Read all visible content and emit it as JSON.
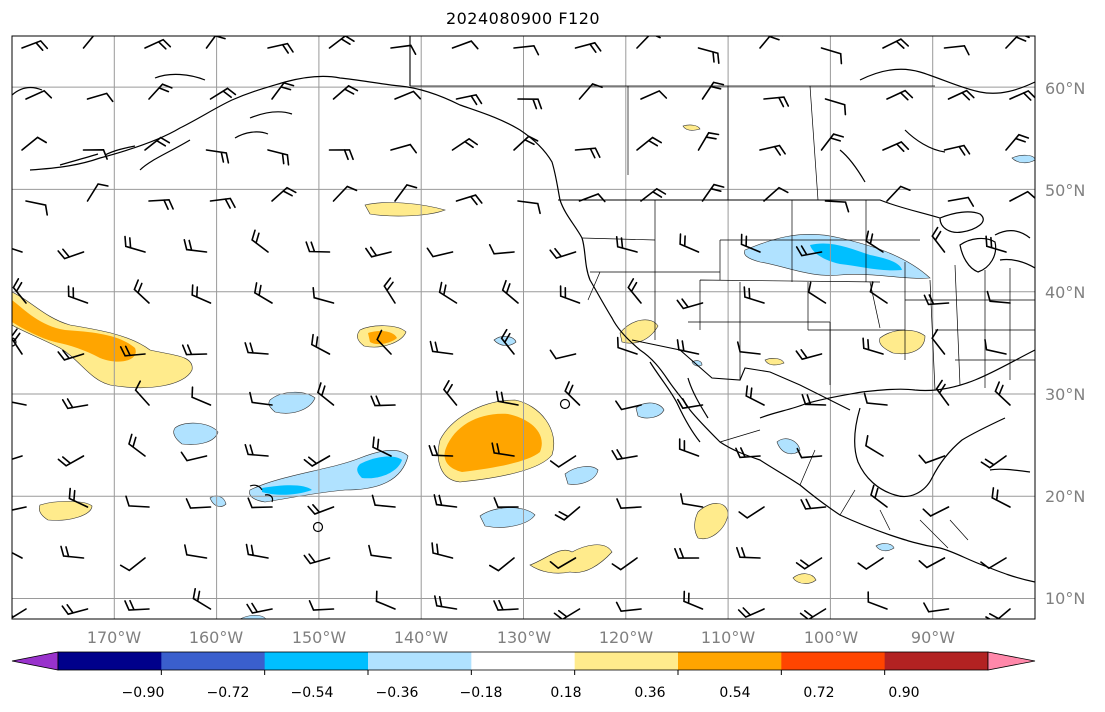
{
  "title": "2024080900 F120",
  "map": {
    "projection": "equirectangular",
    "lon_range": [
      -180,
      -80
    ],
    "lat_range": [
      8,
      65
    ],
    "lat_labels": [
      "60°N",
      "50°N",
      "40°N",
      "30°N",
      "20°N",
      "10°N"
    ],
    "lat_values": [
      60,
      50,
      40,
      30,
      20,
      10
    ],
    "lon_labels": [
      "170°W",
      "160°W",
      "150°W",
      "140°W",
      "130°W",
      "120°W",
      "110°W",
      "100°W",
      "90°W"
    ],
    "lon_values": [
      -170,
      -160,
      -150,
      -140,
      -130,
      -120,
      -110,
      -100,
      -90
    ],
    "grid": true,
    "features": [
      "coastlines",
      "country-borders",
      "state-borders",
      "wind-barbs",
      "filled-contours"
    ]
  },
  "colorbar": {
    "ticks": [
      "−0.90",
      "−0.72",
      "−0.54",
      "−0.36",
      "−0.18",
      "0.18",
      "0.36",
      "0.54",
      "0.72",
      "0.90"
    ],
    "colors": [
      "#9932cc",
      "#00008b",
      "#3a5fcd",
      "#00bfff",
      "#b0e2ff",
      "#ffffff",
      "#ffeb8c",
      "#ffa500",
      "#ff4500",
      "#b22222",
      "#ff88aa"
    ],
    "extend": "both"
  }
}
